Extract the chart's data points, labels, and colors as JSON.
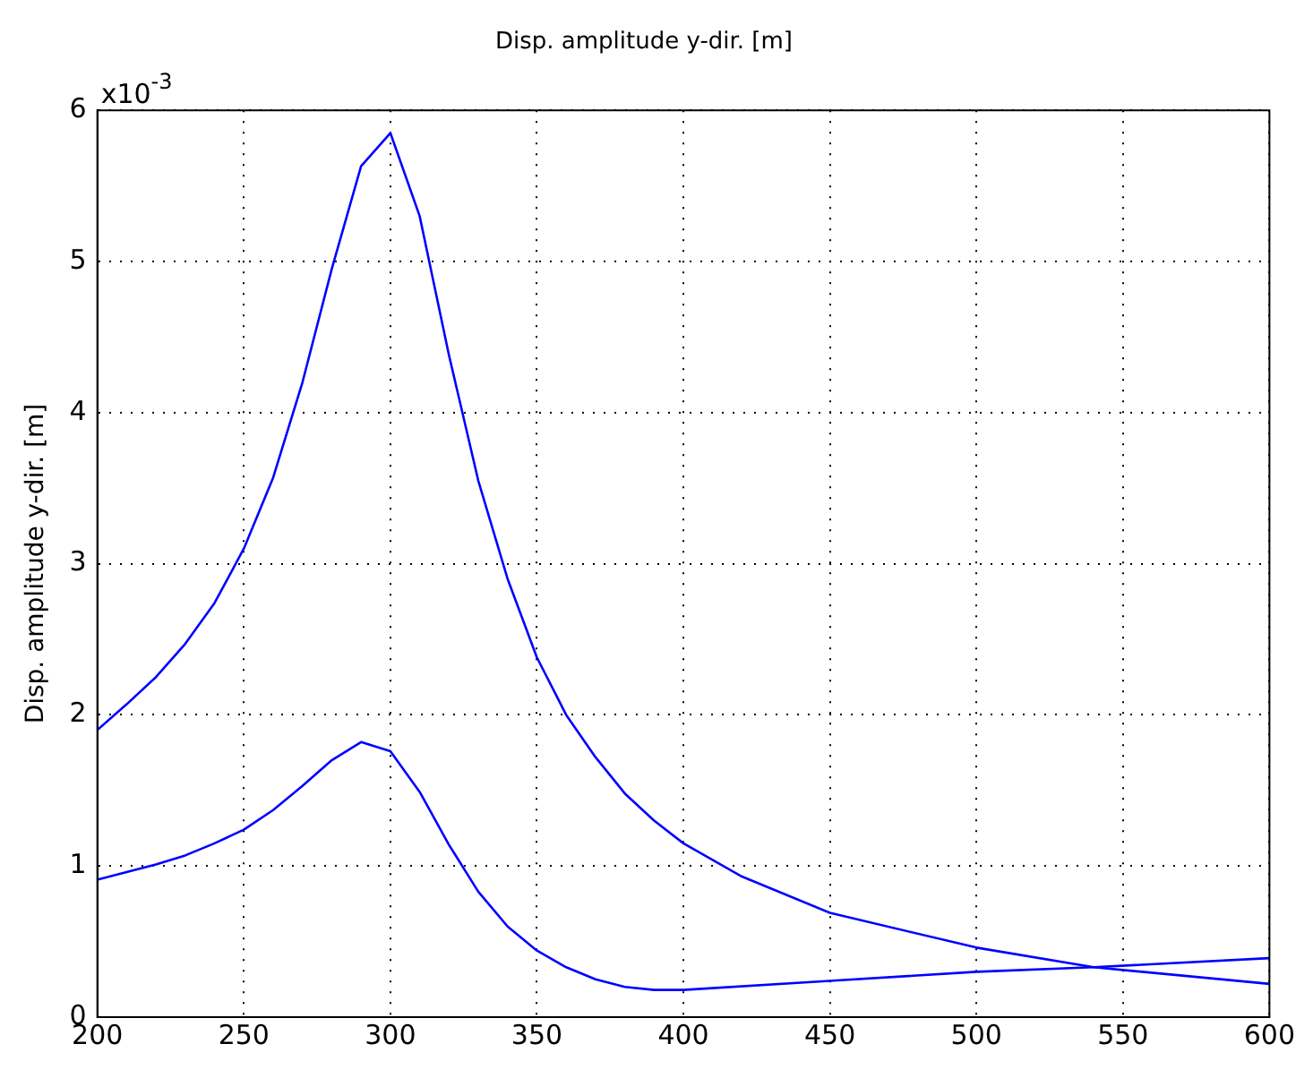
{
  "chart_data": {
    "type": "line",
    "title": "Disp. amplitude y-dir. [m]",
    "ylabel": "Disp. amplitude y-dir. [m]",
    "annotations": [
      "x10$^{-3}$"
    ],
    "xlim": [
      200,
      600
    ],
    "xticks": [
      200,
      250,
      300,
      350,
      400,
      450,
      500,
      550,
      600
    ],
    "ylim": [
      0,
      6
    ],
    "yticks": [
      0,
      1,
      2,
      3,
      4,
      5,
      6
    ],
    "grid": true,
    "legend": false,
    "marker": "none",
    "line_style": "solid",
    "series": [
      {
        "color": "#0000ff",
        "x": [
          200,
          210,
          220,
          230,
          240,
          250,
          260,
          270,
          280,
          290,
          300,
          310,
          320,
          330,
          340,
          350,
          360,
          370,
          380,
          390,
          400,
          420,
          450,
          500,
          540,
          600
        ],
        "values": [
          1.9,
          2.07,
          2.25,
          2.47,
          2.74,
          3.1,
          3.57,
          4.2,
          4.95,
          5.63,
          5.85,
          5.3,
          4.38,
          3.55,
          2.9,
          2.38,
          2.0,
          1.72,
          1.48,
          1.3,
          1.15,
          0.93,
          0.69,
          0.46,
          0.33,
          0.22
        ]
      },
      {
        "color": "#0000ff",
        "x": [
          200,
          210,
          220,
          230,
          240,
          250,
          260,
          270,
          280,
          290,
          300,
          310,
          320,
          330,
          340,
          350,
          360,
          370,
          380,
          390,
          400,
          450,
          500,
          540,
          600
        ],
        "values": [
          0.91,
          0.96,
          1.01,
          1.07,
          1.15,
          1.24,
          1.37,
          1.53,
          1.7,
          1.82,
          1.76,
          1.49,
          1.14,
          0.83,
          0.6,
          0.44,
          0.33,
          0.25,
          0.2,
          0.18,
          0.18,
          0.24,
          0.3,
          0.33,
          0.39
        ]
      }
    ]
  }
}
